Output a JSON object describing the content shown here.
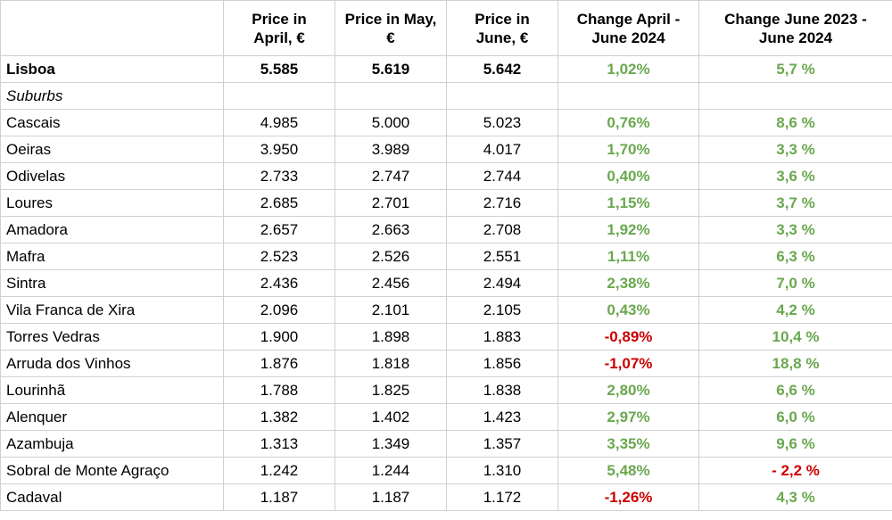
{
  "table": {
    "columns": [
      "Price in April, €",
      "Price in May, €",
      "Price in June, €",
      "Change April - June 2024",
      "Change June 2023 - June 2024"
    ],
    "rows": [
      [
        "Lisboa",
        "5.585",
        "5.619",
        "5.642",
        "1,02%",
        "5,7 %"
      ],
      [
        "Suburbs"
      ],
      [
        "Cascais",
        "4.985",
        "5.000",
        "5.023",
        "0,76%",
        "8,6 %"
      ],
      [
        "Oeiras",
        "3.950",
        "3.989",
        "4.017",
        "1,70%",
        "3,3 %"
      ],
      [
        "Odivelas",
        "2.733",
        "2.747",
        "2.744",
        "0,40%",
        "3,6 %"
      ],
      [
        "Loures",
        "2.685",
        "2.701",
        "2.716",
        "1,15%",
        "3,7 %"
      ],
      [
        "Amadora",
        "2.657",
        "2.663",
        "2.708",
        "1,92%",
        "3,3 %"
      ],
      [
        "Mafra",
        "2.523",
        "2.526",
        "2.551",
        "1,11%",
        "6,3 %"
      ],
      [
        "Sintra",
        "2.436",
        "2.456",
        "2.494",
        "2,38%",
        "7,0 %"
      ],
      [
        "Vila Franca de Xira",
        "2.096",
        "2.101",
        "2.105",
        "0,43%",
        "4,2 %"
      ],
      [
        "Torres Vedras",
        "1.900",
        "1.898",
        "1.883",
        "-0,89%",
        "10,4 %"
      ],
      [
        "Arruda dos Vinhos",
        "1.876",
        "1.818",
        "1.856",
        "-1,07%",
        "18,8 %"
      ],
      [
        "Lourinhã",
        "1.788",
        "1.825",
        "1.838",
        "2,80%",
        "6,6 %"
      ],
      [
        "Alenquer",
        "1.382",
        "1.402",
        "1.423",
        "2,97%",
        "6,0 %"
      ],
      [
        "Azambuja",
        "1.313",
        "1.349",
        "1.357",
        "3,35%",
        "9,6 %"
      ],
      [
        "Sobral de Monte Agraço",
        "1.242",
        "1.244",
        "1.310",
        "5,48%",
        "- 2,2 %"
      ],
      [
        "Cadaval",
        "1.187",
        "1.187",
        "1.172",
        "-1,26%",
        "4,3 %"
      ]
    ]
  }
}
